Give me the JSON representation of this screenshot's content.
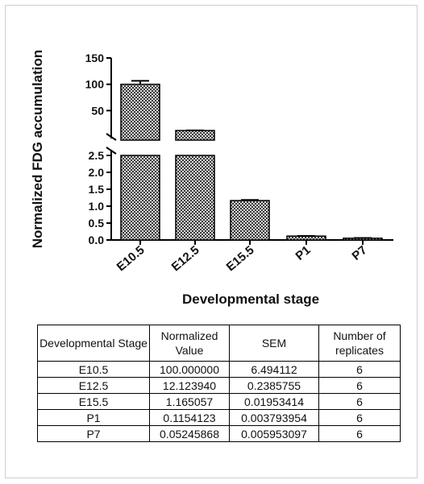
{
  "chart_data": {
    "type": "bar",
    "title": "",
    "xlabel": "Developmental stage",
    "ylabel": "Normalized FDG accumulation",
    "categories": [
      "E10.5",
      "E12.5",
      "E15.5",
      "P1",
      "P7"
    ],
    "values": [
      100.0,
      12.12394,
      1.165057,
      0.1154123,
      0.05245868
    ],
    "errors": [
      6.494112,
      0.2385755,
      0.01953414,
      0.003793954,
      0.005953097
    ],
    "y_axis_broken": true,
    "lower_segment": {
      "ylim": [
        0,
        2.5
      ],
      "ticks": [
        "0.0",
        "0.5",
        "1.0",
        "1.5",
        "2.0",
        "2.5"
      ]
    },
    "upper_segment": {
      "ylim": [
        0,
        150
      ],
      "ticks": [
        "50",
        "100",
        "150"
      ]
    },
    "bar_fill": "#8c8c8c",
    "grid": false,
    "legend": "none"
  },
  "table": {
    "headers": [
      "Developmental Stage",
      "Normalized Value",
      "SEM",
      "Number of replicates"
    ],
    "rows": [
      [
        "E10.5",
        "100.000000",
        "6.494112",
        "6"
      ],
      [
        "E12.5",
        "12.123940",
        "0.2385755",
        "6"
      ],
      [
        "E15.5",
        "1.165057",
        "0.01953414",
        "6"
      ],
      [
        "P1",
        "0.1154123",
        "0.003793954",
        "6"
      ],
      [
        "P7",
        "0.05245868",
        "0.005953097",
        "6"
      ]
    ]
  }
}
